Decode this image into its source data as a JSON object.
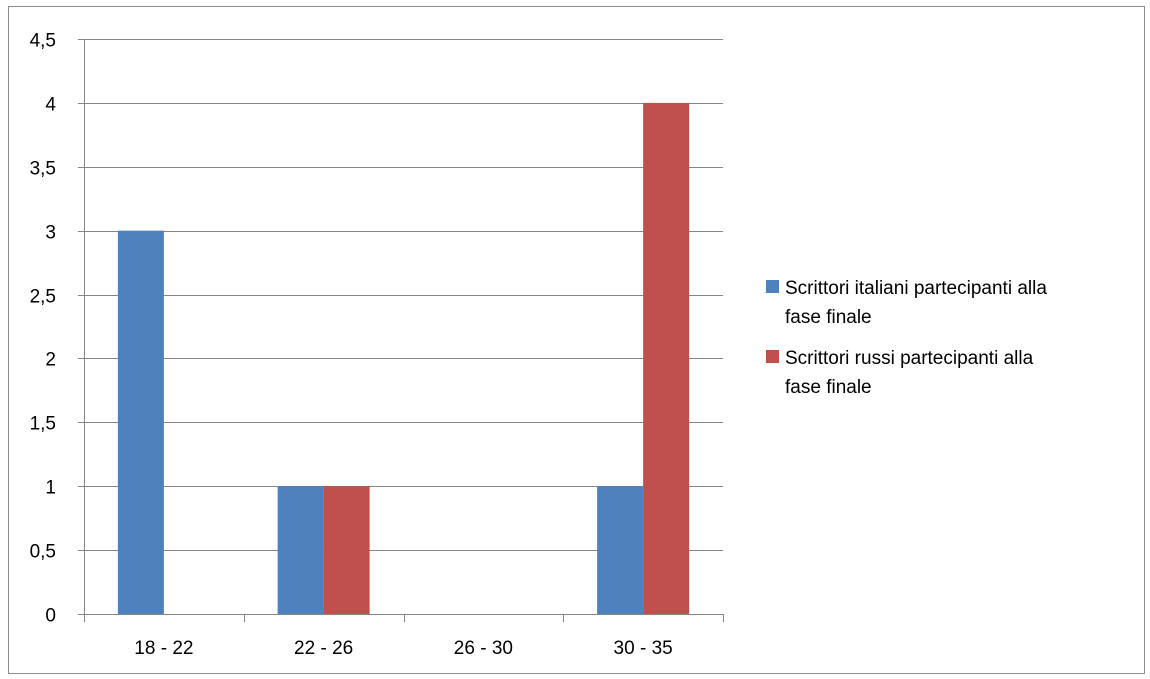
{
  "chart_data": {
    "type": "bar",
    "categories": [
      "18 - 22",
      "22 - 26",
      "26 - 30",
      "30 - 35"
    ],
    "series": [
      {
        "name": "Scrittori italiani partecipanti alla fase finale",
        "legend_lines": [
          "Scrittori italiani partecipanti alla",
          "fase finale"
        ],
        "color": "#4f81bd",
        "values": [
          3,
          1,
          0,
          1
        ]
      },
      {
        "name": "Scrittori russi partecipanti alla fase finale",
        "legend_lines": [
          "Scrittori russi partecipanti alla",
          "fase finale"
        ],
        "color": "#c0504d",
        "values": [
          0,
          1,
          0,
          4
        ]
      }
    ],
    "yticks": [
      "0",
      "0,5",
      "1",
      "1,5",
      "2",
      "2,5",
      "3",
      "3,5",
      "4",
      "4,5"
    ],
    "ylim": [
      0,
      4.5
    ],
    "grid": true,
    "legend_position": "right",
    "title": "",
    "xlabel": "",
    "ylabel": ""
  }
}
